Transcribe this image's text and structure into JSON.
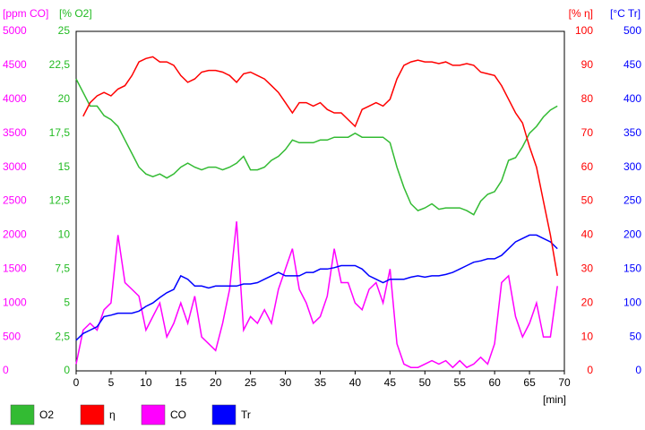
{
  "chart_data": {
    "type": "line",
    "x_label": "[min]",
    "xlim": [
      0,
      70
    ],
    "xticks": [
      0,
      5,
      10,
      15,
      20,
      25,
      30,
      35,
      40,
      45,
      50,
      55,
      60,
      65,
      70
    ],
    "y_axes": [
      {
        "label": "[ppm CO]",
        "color": "#ff00ff",
        "side": "left",
        "lim": [
          0,
          5000
        ],
        "ticks": [
          0,
          500,
          1000,
          1500,
          2000,
          2500,
          3000,
          3500,
          4000,
          4500,
          5000
        ]
      },
      {
        "label": "[% O2]",
        "color": "#22bb22",
        "side": "left",
        "lim": [
          0,
          25
        ],
        "ticks": [
          0,
          {
            "value": 2.5,
            "label": "2,5"
          },
          5,
          {
            "value": 7.5,
            "label": "7,5"
          },
          10,
          {
            "value": 12.5,
            "label": "12,5"
          },
          15,
          {
            "value": 17.5,
            "label": "17,5"
          },
          20,
          {
            "value": 22.5,
            "label": "22,5"
          },
          25
        ]
      },
      {
        "label": "[% η]",
        "color": "#ff0000",
        "side": "right",
        "lim": [
          0,
          100
        ],
        "ticks": [
          0,
          10,
          20,
          30,
          40,
          50,
          60,
          70,
          80,
          90,
          100
        ]
      },
      {
        "label": "[°C Tr]",
        "color": "#0000ff",
        "side": "right",
        "lim": [
          0,
          500
        ],
        "ticks": [
          0,
          50,
          100,
          150,
          200,
          250,
          300,
          350,
          400,
          450,
          500
        ]
      }
    ],
    "x": [
      0,
      1,
      2,
      3,
      4,
      5,
      6,
      7,
      8,
      9,
      10,
      11,
      12,
      13,
      14,
      15,
      16,
      17,
      18,
      19,
      20,
      21,
      22,
      23,
      24,
      25,
      26,
      27,
      28,
      29,
      30,
      31,
      32,
      33,
      34,
      35,
      36,
      37,
      38,
      39,
      40,
      41,
      42,
      43,
      44,
      45,
      46,
      47,
      48,
      49,
      50,
      51,
      52,
      53,
      54,
      55,
      56,
      57,
      58,
      59,
      60,
      61,
      62,
      63,
      64,
      65,
      66,
      67,
      68,
      69
    ],
    "series": [
      {
        "name": "O2",
        "color": "#33bb33",
        "axis": 1,
        "values": [
          21.5,
          20.5,
          19.5,
          19.5,
          18.8,
          18.5,
          18,
          17,
          16,
          15,
          14.5,
          14.3,
          14.5,
          14.2,
          14.5,
          15,
          15.3,
          15,
          14.8,
          15,
          15,
          14.8,
          15,
          15.3,
          15.8,
          14.8,
          14.8,
          15,
          15.5,
          15.8,
          16.3,
          17,
          16.8,
          16.8,
          16.8,
          17,
          17,
          17.2,
          17.2,
          17.2,
          17.5,
          17.2,
          17.2,
          17.2,
          17.2,
          16.8,
          15,
          13.5,
          12.3,
          11.8,
          12,
          12.3,
          11.9,
          12,
          12,
          12,
          11.8,
          11.5,
          12.5,
          13,
          13.2,
          14,
          15.5,
          15.7,
          16.5,
          17.5,
          18,
          18.7,
          19.2,
          19.5
        ]
      },
      {
        "name": "η",
        "color": "#ff0000",
        "axis": 2,
        "values": [
          null,
          75,
          79,
          81,
          82,
          81,
          83,
          84,
          87,
          91,
          92,
          92.5,
          91,
          91,
          90,
          87,
          85,
          86,
          88,
          88.5,
          88.5,
          88,
          87,
          85,
          87.5,
          88,
          87,
          86,
          84,
          82,
          79,
          76,
          79,
          79,
          78,
          79,
          77,
          76,
          76,
          74,
          72,
          77,
          78,
          79,
          78,
          80,
          86,
          90,
          91,
          91.5,
          91,
          91,
          90.5,
          91,
          90,
          90,
          90.5,
          90,
          88,
          87.5,
          87,
          84,
          80,
          76,
          73,
          66,
          60,
          50,
          40,
          28
        ]
      },
      {
        "name": "CO",
        "color": "#ff00ff",
        "axis": 0,
        "values": [
          100,
          600,
          700,
          600,
          900,
          1000,
          2000,
          1300,
          1200,
          1100,
          600,
          800,
          1000,
          500,
          700,
          1000,
          700,
          1100,
          500,
          400,
          300,
          700,
          1200,
          2200,
          600,
          800,
          700,
          900,
          700,
          1200,
          1500,
          1800,
          1200,
          1000,
          700,
          800,
          1100,
          1800,
          1300,
          1300,
          1000,
          900,
          1200,
          1300,
          1000,
          1500,
          400,
          100,
          50,
          50,
          100,
          150,
          100,
          150,
          50,
          150,
          50,
          100,
          200,
          100,
          400,
          1300,
          1400,
          800,
          500,
          700,
          1000,
          500,
          500,
          1250
        ]
      },
      {
        "name": "Tr",
        "color": "#0000ff",
        "axis": 3,
        "values": [
          45,
          55,
          60,
          65,
          80,
          82,
          85,
          85,
          85,
          88,
          95,
          100,
          108,
          115,
          120,
          140,
          135,
          125,
          125,
          122,
          125,
          125,
          125,
          125,
          128,
          128,
          130,
          135,
          140,
          145,
          140,
          140,
          140,
          145,
          145,
          150,
          150,
          152,
          155,
          155,
          155,
          150,
          140,
          135,
          130,
          135,
          135,
          135,
          138,
          140,
          138,
          140,
          140,
          142,
          145,
          150,
          155,
          160,
          162,
          165,
          165,
          170,
          180,
          190,
          195,
          200,
          200,
          195,
          190,
          180
        ]
      }
    ]
  }
}
